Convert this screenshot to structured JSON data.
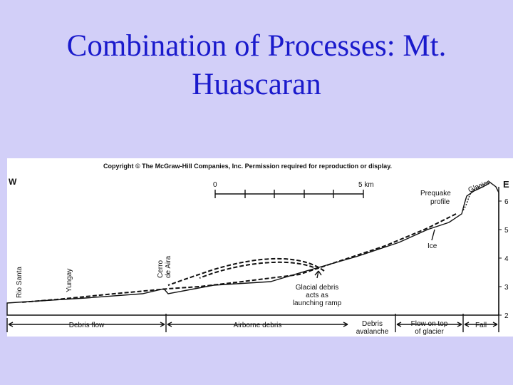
{
  "title": [
    "Combination of Processes: Mt.",
    "Huascaran"
  ],
  "figure": {
    "copyright": "Copyright © The McGraw-Hill Companies, Inc. Permission required for reproduction or display.",
    "west": "W",
    "east": "E",
    "scale": {
      "start": "0",
      "end": "5 km"
    },
    "elevation_ticks": [
      6,
      5,
      4,
      3,
      2
    ],
    "labels": {
      "glacier": "Glacier",
      "prequake_profile": [
        "Prequake",
        "profile"
      ],
      "ice": "Ice",
      "rio_santa": "Rio Santa",
      "yungay": "Yungay",
      "cerro_de_aira": [
        "Cerro",
        "de Aira"
      ],
      "launching_ramp": [
        "Glacial debris",
        "acts as",
        "launching ramp"
      ]
    },
    "segments": [
      [
        "Debris flow"
      ],
      [
        "Airborne debris"
      ],
      [
        "Debris",
        "avalanche"
      ],
      [
        "Flow on top",
        "of glacier"
      ],
      [
        "Fall"
      ]
    ]
  }
}
